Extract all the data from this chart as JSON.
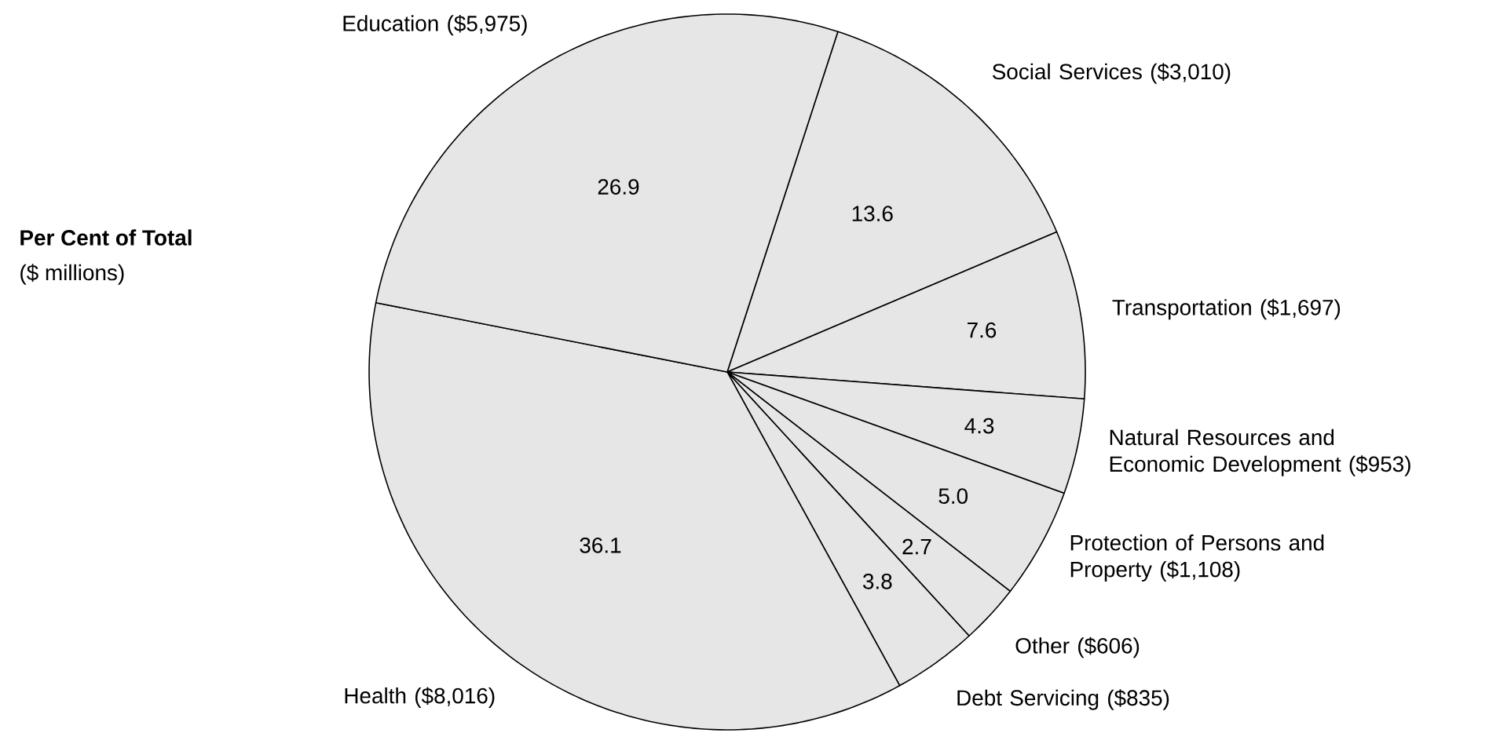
{
  "chart_data": {
    "type": "pie",
    "title": "Per Cent of Total",
    "subtitle": "($ millions)",
    "categories": [
      "Social Services ($3,010)",
      "Transportation ($1,697)",
      "Natural Resources and Economic Development ($953)",
      "Protection of Persons and Property ($1,108)",
      "Other ($606)",
      "Debt Servicing ($835)",
      "Health ($8,016)",
      "Education ($5,975)"
    ],
    "values": [
      13.6,
      7.6,
      4.3,
      5.0,
      2.7,
      3.8,
      36.1,
      26.9
    ],
    "colors": [
      "#e6e6e6",
      "#e6e6e6",
      "#e6e6e6",
      "#e6e6e6",
      "#e6e6e6",
      "#e6e6e6",
      "#e6e6e6",
      "#e6e6e6"
    ],
    "value_labels": [
      "13.6",
      "7.6",
      "4.3",
      "5.0",
      "2.7",
      "3.8",
      "36.1",
      "26.9"
    ]
  }
}
